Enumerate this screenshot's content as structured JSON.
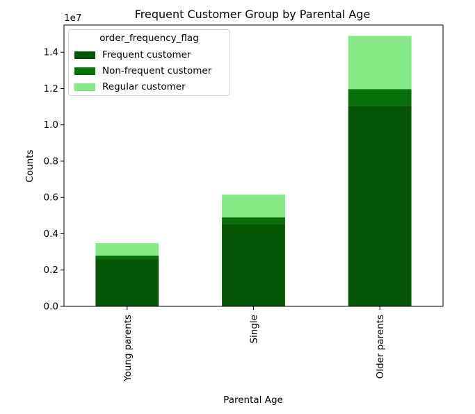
{
  "chart_data": {
    "type": "bar",
    "stacked": true,
    "title": "Frequent Customer Group by Parental Age",
    "xlabel": "Parental Age",
    "ylabel": "Counts",
    "y_scale_label": "1e7",
    "categories": [
      "Young parents",
      "Single",
      "Older parents"
    ],
    "series": [
      {
        "name": "Frequent customer",
        "color": "#045504",
        "values": [
          2600000,
          4550000,
          11050000
        ]
      },
      {
        "name": "Non-frequent customer",
        "color": "#087008",
        "values": [
          200000,
          350000,
          920000
        ]
      },
      {
        "name": "Regular customer",
        "color": "#86ea86",
        "values": [
          680000,
          1250000,
          2930000
        ]
      }
    ],
    "ylim": [
      0,
      15500000
    ],
    "yticks": [
      0,
      2000000,
      4000000,
      6000000,
      8000000,
      10000000,
      12000000,
      14000000
    ],
    "ytick_labels": [
      "0.0",
      "0.2",
      "0.4",
      "0.6",
      "0.8",
      "1.0",
      "1.2",
      "1.4"
    ],
    "legend_title": "order_frequency_flag",
    "legend_position": "top-left",
    "grid": false
  }
}
